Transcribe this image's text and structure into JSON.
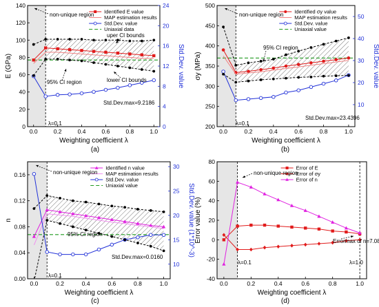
{
  "chart_data": [
    {
      "type": "line",
      "caption": "(a)",
      "xlabel": "Weighting coefficient λ",
      "ylabel": "E (GPa)",
      "ylabel_right": "Std.Dev. value",
      "xlim": [
        -0.05,
        1.05
      ],
      "ylim": [
        0,
        140
      ],
      "ylim_right": [
        0,
        24
      ],
      "xticks": [
        "0.0",
        "0.2",
        "0.4",
        "0.6",
        "0.8",
        "1.0"
      ],
      "yticks": [
        "0",
        "20",
        "40",
        "60",
        "80",
        "100",
        "120",
        "140"
      ],
      "yticks_right": [
        "0",
        "4",
        "8",
        "12",
        "16",
        "20",
        "24"
      ],
      "shade_x": [
        -0.05,
        0.1
      ],
      "vline_x": 0.1,
      "uniaxial_value": 77,
      "legend": [
        "Identified E value",
        "MAP estimation results",
        "Std.Dev. value",
        "Uniaxial data"
      ],
      "annotations": [
        "non-unique region",
        "uper CI bounds",
        "lower CI bounds",
        "95% CI region",
        "λ=0.1",
        "Std.Dev.max=9.2186"
      ],
      "series": [
        {
          "name": "Identified E value",
          "axis": "left",
          "color": "#e11b1b",
          "marker": "square",
          "x": [
            0,
            0.1,
            0.2,
            0.3,
            0.4,
            0.5,
            0.6,
            0.7,
            0.8,
            0.9,
            1.0
          ],
          "values": [
            77,
            91,
            90,
            89,
            88,
            87,
            86,
            85,
            84,
            83,
            82
          ]
        },
        {
          "name": "MAP estimation results",
          "axis": "left",
          "color": "#f08080",
          "marker": "none",
          "x": [
            0,
            0.1,
            0.2,
            0.3,
            0.4,
            0.5,
            0.6,
            0.7,
            0.8,
            0.9,
            1.0
          ],
          "values": [
            73,
            86,
            86,
            85,
            84,
            83,
            82,
            81,
            80,
            79,
            79
          ]
        },
        {
          "name": "Std.Dev. value",
          "axis": "right",
          "color": "#2030d8",
          "marker": "open-circle",
          "x": [
            0,
            0.1,
            0.2,
            0.3,
            0.4,
            0.5,
            0.6,
            0.7,
            0.8,
            0.9,
            1.0
          ],
          "values": [
            10,
            6.0,
            6.3,
            6.4,
            6.6,
            6.9,
            7.3,
            7.7,
            8.2,
            8.7,
            9.2
          ]
        },
        {
          "name": "upper CI",
          "axis": "left",
          "color": "#000000",
          "marker": "dot",
          "x": [
            0,
            0.1,
            0.2,
            0.3,
            0.4,
            0.5,
            0.6,
            0.7,
            0.8,
            0.9,
            1.0
          ],
          "values": [
            95,
            101,
            101,
            101,
            101,
            100,
            100,
            100,
            99,
            99,
            100
          ]
        },
        {
          "name": "lower CI",
          "axis": "left",
          "color": "#000000",
          "marker": "dot",
          "x": [
            0,
            0.1,
            0.2,
            0.3,
            0.4,
            0.5,
            0.6,
            0.7,
            0.8,
            0.9,
            1.0
          ],
          "values": [
            59,
            78,
            78,
            77,
            76,
            74,
            72,
            70,
            68,
            66,
            64
          ]
        }
      ]
    },
    {
      "type": "line",
      "caption": "(b)",
      "xlabel": "Weighting coefficient λ",
      "ylabel": "σy (MPa)",
      "ylabel_right": "Std.Dev. value",
      "xlim": [
        -0.05,
        1.05
      ],
      "ylim": [
        200,
        500
      ],
      "ylim_right": [
        0,
        55
      ],
      "xticks": [
        "0.0",
        "0.2",
        "0.4",
        "0.6",
        "0.8",
        "1.0"
      ],
      "yticks": [
        "200",
        "250",
        "300",
        "350",
        "400",
        "450",
        "500"
      ],
      "yticks_right": [
        "10",
        "20",
        "30",
        "40",
        "50"
      ],
      "shade_x": [
        -0.05,
        0.1
      ],
      "vline_x": 0.1,
      "uniaxial_value": 370,
      "legend": [
        "Identified σy value",
        "MAP estimation results",
        "Std.Dev. value",
        "Uniaxial value"
      ],
      "annotations": [
        "non-unique region",
        "95% CI region",
        "λ=0.1",
        "Std.Dev.max=23.4396"
      ],
      "series": [
        {
          "name": "Identified σy value",
          "axis": "left",
          "color": "#e11b1b",
          "marker": "circle",
          "x": [
            0,
            0.1,
            0.2,
            0.3,
            0.4,
            0.5,
            0.6,
            0.7,
            0.8,
            0.9,
            1.0
          ],
          "values": [
            390,
            334,
            337,
            341,
            345,
            350,
            354,
            358,
            362,
            366,
            370
          ]
        },
        {
          "name": "MAP estimation results",
          "axis": "left",
          "color": "#f08080",
          "marker": "none",
          "x": [
            0,
            0.1,
            0.2,
            0.3,
            0.4,
            0.5,
            0.6,
            0.7,
            0.8,
            0.9,
            1.0
          ],
          "values": [
            375,
            330,
            333,
            336,
            340,
            344,
            348,
            352,
            356,
            360,
            364
          ]
        },
        {
          "name": "Std.Dev. value",
          "axis": "right",
          "color": "#2030d8",
          "marker": "open-circle",
          "x": [
            0,
            0.1,
            0.2,
            0.3,
            0.4,
            0.5,
            0.6,
            0.7,
            0.8,
            0.9,
            1.0
          ],
          "values": [
            25,
            12,
            12.5,
            13,
            13.5,
            15.5,
            16.5,
            18,
            19.5,
            21,
            23.4
          ]
        },
        {
          "name": "upper CI",
          "axis": "left",
          "color": "#000000",
          "marker": "dot",
          "x": [
            0,
            0.1,
            0.2,
            0.3,
            0.4,
            0.5,
            0.6,
            0.7,
            0.8,
            0.9,
            1.0
          ],
          "values": [
            447,
            352,
            358,
            362,
            367,
            378,
            387,
            396,
            404,
            412,
            420
          ]
        },
        {
          "name": "lower CI",
          "axis": "left",
          "color": "#000000",
          "marker": "dot",
          "x": [
            0,
            0.1,
            0.2,
            0.3,
            0.4,
            0.5,
            0.6,
            0.7,
            0.8,
            0.9,
            1.0
          ],
          "values": [
            330,
            310,
            313,
            316,
            318,
            320,
            322,
            323,
            325,
            326,
            327
          ]
        }
      ]
    },
    {
      "type": "line",
      "caption": "(c)",
      "xlabel": "Weighting coefficient λ",
      "ylabel": "n",
      "ylabel_right": "Std.Dev. value (1*10^-3)",
      "xlim": [
        -0.05,
        1.05
      ],
      "ylim": [
        0,
        0.18
      ],
      "ylim_right": [
        7,
        31
      ],
      "xticks": [
        "0.0",
        "0.2",
        "0.4",
        "0.6",
        "0.8",
        "1.0"
      ],
      "yticks": [
        "0.00",
        "0.04",
        "0.08",
        "0.12",
        "0.16"
      ],
      "yticks_right": [
        "10",
        "15",
        "20",
        "25",
        "30"
      ],
      "shade_x": [
        -0.05,
        0.1
      ],
      "vline_x": 0.1,
      "uniaxial_value": 0.068,
      "legend": [
        "Identified n value",
        "MAP estimation results",
        "Std.Dev. value",
        "Uniaxial value"
      ],
      "annotations": [
        "non-unique region",
        "95% CI region",
        "λ=0.1",
        "Std.Dev.max=0.0160"
      ],
      "series": [
        {
          "name": "Identified n value",
          "axis": "left",
          "color": "#e020e0",
          "marker": "triangle",
          "x": [
            0,
            0.1,
            0.2,
            0.3,
            0.4,
            0.5,
            0.6,
            0.7,
            0.8,
            0.9,
            1.0
          ],
          "values": [
            0.065,
            0.106,
            0.103,
            0.1,
            0.097,
            0.094,
            0.091,
            0.088,
            0.085,
            0.082,
            0.08
          ]
        },
        {
          "name": "MAP estimation results",
          "axis": "left",
          "color": "#f090f0",
          "marker": "none",
          "x": [
            0,
            0.1,
            0.2,
            0.3,
            0.4,
            0.5,
            0.6,
            0.7,
            0.8,
            0.9,
            1.0
          ],
          "values": [
            0.052,
            0.1,
            0.098,
            0.096,
            0.093,
            0.09,
            0.087,
            0.085,
            0.082,
            0.08,
            0.077
          ]
        },
        {
          "name": "Std.Dev. value",
          "axis": "right",
          "color": "#2030d8",
          "marker": "open-circle",
          "x": [
            0,
            0.1,
            0.2,
            0.3,
            0.4,
            0.5,
            0.6,
            0.7,
            0.8,
            0.9,
            1.0
          ],
          "values": [
            28.5,
            12.5,
            12,
            12,
            12,
            13,
            14,
            15,
            15.5,
            16,
            16
          ]
        },
        {
          "name": "upper CI",
          "axis": "left",
          "color": "#000000",
          "marker": "dot",
          "x": [
            0,
            0.1,
            0.2,
            0.3,
            0.4,
            0.5,
            0.6,
            0.7,
            0.8,
            0.9,
            1.0
          ],
          "values": [
            0.108,
            0.128,
            0.124,
            0.12,
            0.118,
            0.115,
            0.112,
            0.11,
            0.107,
            0.105,
            0.103
          ]
        },
        {
          "name": "lower CI",
          "axis": "left",
          "color": "#000000",
          "marker": "dot",
          "x": [
            0,
            0.1,
            0.2,
            0.3,
            0.4,
            0.5,
            0.6,
            0.7,
            0.8,
            0.9,
            1.0
          ],
          "values": [
            -0.004,
            0.09,
            0.085,
            0.08,
            0.075,
            0.07,
            0.065,
            0.06,
            0.055,
            0.05,
            0.043
          ]
        }
      ]
    },
    {
      "type": "line",
      "caption": "(d)",
      "xlabel": "Weighting coefficient λ",
      "ylabel": "Error value (%)",
      "xlim": [
        -0.05,
        1.05
      ],
      "ylim": [
        -40,
        80
      ],
      "xticks": [
        "0.0",
        "0.2",
        "0.4",
        "0.6",
        "0.8",
        "1.0"
      ],
      "yticks": [
        "-40",
        "-20",
        "0",
        "20",
        "40",
        "60",
        "80"
      ],
      "shade_x": [
        -0.05,
        0.1
      ],
      "vline_x": 0.1,
      "vline2_x": 1.0,
      "legend": [
        "Error of E",
        "Error of σy",
        "Error of n"
      ],
      "annotations": [
        "non-unique region",
        "Errormax of n=7.08%",
        "λ=0.1",
        "λ=1.0"
      ],
      "series": [
        {
          "name": "Error of E",
          "axis": "left",
          "color": "#e11b1b",
          "marker": "square",
          "x": [
            0,
            0.1,
            0.2,
            0.3,
            0.4,
            0.5,
            0.6,
            0.7,
            0.8,
            0.9,
            1.0
          ],
          "values": [
            0,
            14,
            15,
            15,
            14,
            13,
            12,
            11,
            9,
            8,
            6
          ]
        },
        {
          "name": "Error of σy",
          "axis": "left",
          "color": "#e11b1b",
          "marker": "diamond",
          "x": [
            0,
            0.1,
            0.2,
            0.3,
            0.4,
            0.5,
            0.6,
            0.7,
            0.8,
            0.9,
            1.0
          ],
          "values": [
            5,
            -10,
            -10,
            -8,
            -7,
            -6,
            -5,
            -4,
            -3,
            -1,
            0
          ]
        },
        {
          "name": "Error of n",
          "axis": "left",
          "color": "#e020e0",
          "marker": "triangle",
          "x": [
            0,
            0.1,
            0.2,
            0.3,
            0.4,
            0.5,
            0.6,
            0.7,
            0.8,
            0.9,
            1.0
          ],
          "values": [
            -25,
            59,
            54,
            47,
            41,
            35,
            30,
            24,
            18,
            12,
            7
          ]
        }
      ]
    }
  ]
}
